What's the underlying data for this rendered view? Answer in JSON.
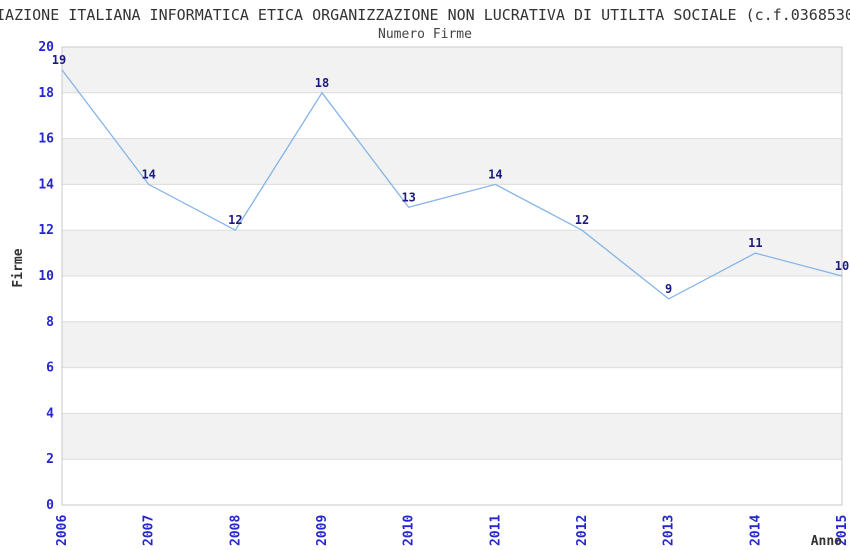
{
  "chart_data": {
    "type": "line",
    "title": "IAZIONE ITALIANA INFORMATICA ETICA ORGANIZZAZIONE NON LUCRATIVA DI UTILITA SOCIALE (c.f.0368530",
    "subtitle": "Numero Firme",
    "xlabel": "Anno",
    "ylabel": "Firme",
    "categories": [
      "2006",
      "2007",
      "2008",
      "2009",
      "2010",
      "2011",
      "2012",
      "2013",
      "2014",
      "2015"
    ],
    "values": [
      19,
      14,
      12,
      18,
      13,
      14,
      12,
      9,
      11,
      10
    ],
    "ylim": [
      0,
      20
    ],
    "ytick_step": 2,
    "grid": true,
    "legend_position": "none",
    "colors": {
      "line": "#86b4e8",
      "band": "#f2f2f2",
      "gridline": "#dcdcdc",
      "plot_border": "#c9c9c9",
      "tick_label": "#2626cf",
      "value_label": "#1a1a80",
      "text": "#333333",
      "background": "#ffffff"
    }
  }
}
